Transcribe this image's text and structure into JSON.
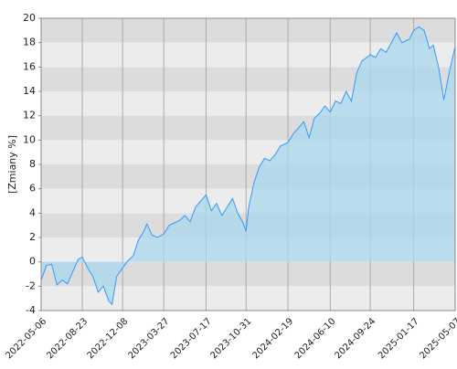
{
  "chart_data": {
    "type": "area",
    "y_label": "[Zmiany %]",
    "x": [
      "2022-05-06",
      "2022-05-20",
      "2022-06-03",
      "2022-06-17",
      "2022-07-01",
      "2022-07-15",
      "2022-07-29",
      "2022-08-12",
      "2022-08-23",
      "2022-09-06",
      "2022-09-20",
      "2022-10-04",
      "2022-10-18",
      "2022-11-01",
      "2022-11-10",
      "2022-11-22",
      "2022-12-08",
      "2022-12-22",
      "2023-01-05",
      "2023-01-19",
      "2023-02-02",
      "2023-02-10",
      "2023-02-24",
      "2023-03-10",
      "2023-03-27",
      "2023-04-10",
      "2023-04-24",
      "2023-05-08",
      "2023-05-22",
      "2023-06-05",
      "2023-06-19",
      "2023-07-03",
      "2023-07-17",
      "2023-07-31",
      "2023-08-14",
      "2023-08-28",
      "2023-09-11",
      "2023-09-25",
      "2023-10-09",
      "2023-10-23",
      "2023-10-31",
      "2023-11-07",
      "2023-11-21",
      "2023-12-05",
      "2023-12-19",
      "2024-01-02",
      "2024-01-16",
      "2024-01-30",
      "2024-02-19",
      "2024-03-04",
      "2024-03-18",
      "2024-04-01",
      "2024-04-15",
      "2024-04-29",
      "2024-05-13",
      "2024-05-27",
      "2024-06-10",
      "2024-06-24",
      "2024-07-08",
      "2024-07-22",
      "2024-08-05",
      "2024-08-19",
      "2024-09-02",
      "2024-09-16",
      "2024-09-24",
      "2024-10-08",
      "2024-10-22",
      "2024-11-05",
      "2024-11-19",
      "2024-12-03",
      "2024-12-17",
      "2025-01-06",
      "2025-01-17",
      "2025-01-31",
      "2025-02-14",
      "2025-02-28",
      "2025-03-10",
      "2025-03-24",
      "2025-04-07",
      "2025-04-21",
      "2025-05-07"
    ],
    "series": [
      {
        "color": "#3399ff",
        "fill": "#a8d8ee",
        "values": [
          -1.5,
          -0.3,
          -0.2,
          -1.9,
          -1.5,
          -1.8,
          -0.8,
          0.2,
          0.4,
          -0.5,
          -1.2,
          -2.5,
          -2.0,
          -3.2,
          -3.5,
          -1.2,
          -0.5,
          0.1,
          0.5,
          1.8,
          2.5,
          3.1,
          2.2,
          2.0,
          2.3,
          3.0,
          3.2,
          3.4,
          3.8,
          3.3,
          4.5,
          5.0,
          5.5,
          4.2,
          4.8,
          3.8,
          4.5,
          5.2,
          4.0,
          3.2,
          2.5,
          4.5,
          6.5,
          7.8,
          8.5,
          8.3,
          8.8,
          9.5,
          9.8,
          10.5,
          11.0,
          11.5,
          10.2,
          11.8,
          12.2,
          12.8,
          12.3,
          13.2,
          13.0,
          14.0,
          13.2,
          15.5,
          16.5,
          16.8,
          17.0,
          16.8,
          17.5,
          17.2,
          18.0,
          18.8,
          18.0,
          18.3,
          19.0,
          19.3,
          19.0,
          17.5,
          17.8,
          16.0,
          13.3,
          15.5,
          17.7
        ]
      }
    ],
    "xlim": [
      "2022-05-06",
      "2025-05-07"
    ],
    "xticks": [
      "2022-05-06",
      "2022-08-23",
      "2022-12-08",
      "2023-03-27",
      "2023-07-17",
      "2023-10-31",
      "2024-02-19",
      "2024-06-10",
      "2024-09-24",
      "2025-01-17",
      "2025-05-07"
    ],
    "ylim": [
      -4,
      20
    ],
    "yticks": [
      -4,
      -2,
      0,
      2,
      4,
      6,
      8,
      10,
      12,
      14,
      16,
      18,
      20
    ],
    "grid": true,
    "band_colors": [
      "#ececec",
      "#dcdcdc"
    ]
  }
}
